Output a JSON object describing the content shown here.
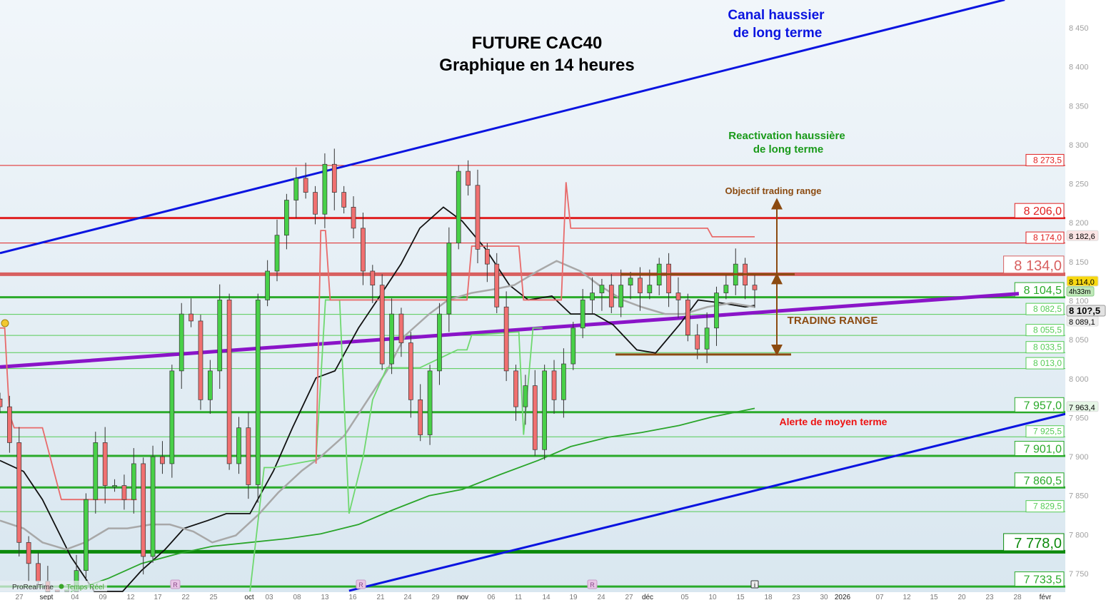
{
  "chart_data": {
    "type": "candlestick",
    "title": "FUTURE CAC40",
    "subtitle": "Graphique en 14 heures",
    "ylim": [
      7725,
      8490
    ],
    "y_ticks": [
      "8 450",
      "8 400",
      "8 350",
      "8 300",
      "8 250",
      "8 200",
      "8 150",
      "8 100",
      "8 050",
      "8 000",
      "7 950",
      "7 900",
      "7 850",
      "7 800",
      "7 750"
    ],
    "y_tick_values": [
      8450,
      8400,
      8350,
      8300,
      8250,
      8200,
      8150,
      8100,
      8050,
      8000,
      7950,
      7900,
      7850,
      7800,
      7750
    ],
    "x_ticks": [
      {
        "label": "27",
        "m": false
      },
      {
        "label": "sept",
        "m": true
      },
      {
        "label": "04",
        "m": false
      },
      {
        "label": "09",
        "m": false
      },
      {
        "label": "12",
        "m": false
      },
      {
        "label": "17",
        "m": false
      },
      {
        "label": "22",
        "m": false
      },
      {
        "label": "25",
        "m": false
      },
      {
        "label": "oct",
        "m": true
      },
      {
        "label": "03",
        "m": false
      },
      {
        "label": "08",
        "m": false
      },
      {
        "label": "13",
        "m": false
      },
      {
        "label": "16",
        "m": false
      },
      {
        "label": "21",
        "m": false
      },
      {
        "label": "24",
        "m": false
      },
      {
        "label": "29",
        "m": false
      },
      {
        "label": "nov",
        "m": true
      },
      {
        "label": "06",
        "m": false
      },
      {
        "label": "11",
        "m": false
      },
      {
        "label": "14",
        "m": false
      },
      {
        "label": "19",
        "m": false
      },
      {
        "label": "24",
        "m": false
      },
      {
        "label": "27",
        "m": false
      },
      {
        "label": "déc",
        "m": true
      },
      {
        "label": "05",
        "m": false
      },
      {
        "label": "10",
        "m": false
      },
      {
        "label": "15",
        "m": false
      },
      {
        "label": "18",
        "m": false
      },
      {
        "label": "23",
        "m": false
      },
      {
        "label": "30",
        "m": false
      },
      {
        "label": "2026",
        "m": true
      },
      {
        "label": "07",
        "m": false
      },
      {
        "label": "12",
        "m": false
      },
      {
        "label": "15",
        "m": false
      },
      {
        "label": "20",
        "m": false
      },
      {
        "label": "23",
        "m": false
      },
      {
        "label": "28",
        "m": false
      },
      {
        "label": "févr",
        "m": true
      }
    ],
    "closes": [
      7964,
      7918,
      7790,
      7763,
      7740,
      7720,
      7700,
      7710,
      7754,
      7845,
      7918,
      7863,
      7863,
      7845,
      7891,
      7772,
      7900,
      7891,
      8010,
      8083,
      8074,
      7973,
      8010,
      8101,
      7891,
      7937,
      7864,
      8101,
      8138,
      8184,
      8229,
      8257,
      8239,
      8211,
      8275,
      8239,
      8220,
      8193,
      8138,
      8120,
      8019,
      8083,
      8046,
      7973,
      7928,
      8010,
      8083,
      8174,
      8266,
      8248,
      8166,
      8147,
      8092,
      8010,
      7964,
      7991,
      7909,
      8010,
      7973,
      8019,
      8065,
      8101,
      8110,
      8120,
      8092,
      8120,
      8129,
      8110,
      8120,
      8147,
      8110,
      8101,
      8056,
      8038,
      8065,
      8110,
      8120,
      8147,
      8120,
      8114
    ],
    "bar_count": 160,
    "series": [
      {
        "color": "#111111",
        "points": [
          [
            0,
            7895
          ],
          [
            5,
            7881
          ],
          [
            9,
            7845
          ],
          [
            15,
            7772
          ],
          [
            20,
            7717
          ],
          [
            26,
            7726
          ],
          [
            30,
            7754
          ],
          [
            35,
            7781
          ],
          [
            39,
            7808
          ],
          [
            44,
            7818
          ],
          [
            48,
            7827
          ],
          [
            53,
            7827
          ],
          [
            58,
            7882
          ],
          [
            62,
            7937
          ],
          [
            67,
            8001
          ],
          [
            71,
            8010
          ],
          [
            76,
            8065
          ],
          [
            80,
            8101
          ],
          [
            85,
            8147
          ],
          [
            89,
            8193
          ],
          [
            94,
            8220
          ],
          [
            98,
            8202
          ],
          [
            103,
            8166
          ],
          [
            108,
            8120
          ],
          [
            112,
            8101
          ],
          [
            117,
            8106
          ],
          [
            121,
            8083
          ],
          [
            126,
            8083
          ],
          [
            130,
            8069
          ],
          [
            135,
            8037
          ],
          [
            139,
            8033
          ],
          [
            144,
            8069
          ],
          [
            148,
            8101
          ],
          [
            153,
            8097
          ],
          [
            158,
            8092
          ],
          [
            160,
            8094
          ]
        ]
      },
      {
        "color": "#a8a8a8",
        "points": [
          [
            0,
            7818
          ],
          [
            5,
            7808
          ],
          [
            9,
            7790
          ],
          [
            14,
            7781
          ],
          [
            18,
            7790
          ],
          [
            23,
            7808
          ],
          [
            27,
            7808
          ],
          [
            32,
            7813
          ],
          [
            36,
            7813
          ],
          [
            41,
            7804
          ],
          [
            45,
            7790
          ],
          [
            50,
            7799
          ],
          [
            55,
            7827
          ],
          [
            59,
            7854
          ],
          [
            64,
            7882
          ],
          [
            68,
            7900
          ],
          [
            73,
            7927
          ],
          [
            77,
            7964
          ],
          [
            82,
            8010
          ],
          [
            86,
            8056
          ],
          [
            91,
            8083
          ],
          [
            95,
            8101
          ],
          [
            100,
            8110
          ],
          [
            105,
            8115
          ],
          [
            109,
            8120
          ],
          [
            114,
            8138
          ],
          [
            118,
            8151
          ],
          [
            123,
            8138
          ],
          [
            127,
            8120
          ],
          [
            132,
            8101
          ],
          [
            136,
            8092
          ],
          [
            141,
            8083
          ],
          [
            145,
            8083
          ],
          [
            150,
            8092
          ],
          [
            155,
            8097
          ],
          [
            160,
            8092
          ]
        ]
      },
      {
        "color": "#2aa52a",
        "points": [
          [
            15,
            7705
          ],
          [
            23,
            7744
          ],
          [
            30,
            7763
          ],
          [
            38,
            7776
          ],
          [
            45,
            7785
          ],
          [
            53,
            7790
          ],
          [
            61,
            7795
          ],
          [
            68,
            7801
          ],
          [
            76,
            7813
          ],
          [
            83,
            7831
          ],
          [
            91,
            7850
          ],
          [
            98,
            7858
          ],
          [
            106,
            7877
          ],
          [
            114,
            7895
          ],
          [
            121,
            7913
          ],
          [
            129,
            7925
          ],
          [
            136,
            7931
          ],
          [
            144,
            7940
          ],
          [
            151,
            7951
          ],
          [
            160,
            7962
          ]
        ]
      },
      {
        "color": "#6fd86f",
        "points": [
          [
            53,
            7726
          ],
          [
            56,
            7886
          ],
          [
            58,
            7886
          ],
          [
            67,
            7896
          ],
          [
            69,
            8101
          ],
          [
            72,
            8101
          ],
          [
            74,
            7827
          ],
          [
            77,
            7900
          ],
          [
            79,
            7973
          ],
          [
            82,
            8014
          ],
          [
            89,
            8014
          ],
          [
            97,
            8037
          ],
          [
            99,
            8037
          ],
          [
            100,
            8056
          ],
          [
            110,
            8060
          ],
          [
            111,
            7928
          ],
          [
            113,
            8065
          ],
          [
            115,
            8065
          ]
        ]
      },
      {
        "color": "#e86a6a",
        "points": [
          [
            0,
            8065
          ],
          [
            1,
            8065
          ],
          [
            2,
            7955
          ],
          [
            3,
            7937
          ],
          [
            9,
            7937
          ],
          [
            10,
            7914
          ],
          [
            13,
            7845
          ],
          [
            29,
            7845
          ]
        ]
      },
      {
        "color": "#e86a6a",
        "points": [
          [
            67,
            7891
          ],
          [
            68,
            8190
          ],
          [
            69,
            8190
          ],
          [
            70,
            8101
          ],
          [
            99,
            8101
          ],
          [
            100,
            8170
          ],
          [
            110,
            8170
          ],
          [
            111,
            8101
          ],
          [
            119,
            8101
          ],
          [
            120,
            8252
          ],
          [
            121,
            8193
          ],
          [
            150,
            8193
          ],
          [
            151,
            8182
          ],
          [
            160,
            8182
          ]
        ]
      }
    ],
    "trendlines": [
      {
        "name": "Canal haussier de long terme (haut)",
        "color": "#0a14e0",
        "from": [
          0,
          8161
        ],
        "to": [
          213,
          8486
        ]
      },
      {
        "name": "Canal haussier (bas)",
        "color": "#0a14e0",
        "from": [
          74,
          7728
        ],
        "to": [
          226,
          7955
        ]
      },
      {
        "color": "#8a14c8",
        "from": [
          0,
          8015
        ],
        "to": [
          216,
          8109
        ]
      }
    ],
    "levels": [
      {
        "value": 8273.5,
        "label": "8 273,5",
        "color": "#e02020",
        "size": "s",
        "weight": 1
      },
      {
        "value": 8206.0,
        "label": "8 206,0",
        "color": "#e02020",
        "size": "m",
        "weight": 3
      },
      {
        "value": 8174.0,
        "label": "8 174,0",
        "color": "#e02020",
        "size": "s",
        "weight": 1
      },
      {
        "value": 8134.0,
        "label": "8 134,0",
        "color": "#d86060",
        "size": "l",
        "weight": 5
      },
      {
        "value": 8104.5,
        "label": "8 104,5",
        "color": "#2aaa2a",
        "size": "m",
        "weight": 3
      },
      {
        "value": 8082.5,
        "label": "8 082,5",
        "color": "#55cc55",
        "size": "s",
        "weight": 1
      },
      {
        "value": 8055.5,
        "label": "8 055,5",
        "color": "#55cc55",
        "size": "s",
        "weight": 1
      },
      {
        "value": 8033.5,
        "label": "8 033,5",
        "color": "#55cc55",
        "size": "s",
        "weight": 1
      },
      {
        "value": 8013.0,
        "label": "8 013,0",
        "color": "#55cc55",
        "size": "s",
        "weight": 1
      },
      {
        "value": 7957.0,
        "label": "7 957,0",
        "color": "#2aaa2a",
        "size": "m",
        "weight": 3
      },
      {
        "value": 7925.5,
        "label": "7 925,5",
        "color": "#55cc55",
        "size": "s",
        "weight": 1
      },
      {
        "value": 7901.0,
        "label": "7 901,0",
        "color": "#2aaa2a",
        "size": "m",
        "weight": 3
      },
      {
        "value": 7860.5,
        "label": "7 860,5",
        "color": "#2aaa2a",
        "size": "m",
        "weight": 3
      },
      {
        "value": 7829.5,
        "label": "7 829,5",
        "color": "#55cc55",
        "size": "s",
        "weight": 1
      },
      {
        "value": 7778.0,
        "label": "7 778,0",
        "color": "#0c8a0c",
        "size": "l",
        "weight": 5
      },
      {
        "value": 7733.5,
        "label": "7 733,5",
        "color": "#2aaa2a",
        "size": "m",
        "weight": 3
      }
    ],
    "trading_range": {
      "top": 8134,
      "bottom": 8031,
      "target": 8230,
      "color": "#8b4a10"
    },
    "price_tags": [
      {
        "value": 8182.6,
        "label": "8 182,6",
        "bg": "#fbe4e4",
        "fg": "#000"
      },
      {
        "value": 8114.0,
        "label": "8 114,0",
        "bg": "#f8d810",
        "fg": "#000"
      },
      {
        "value": 8089.1,
        "label": "8 089,1",
        "bg": "#eeeeee",
        "fg": "#000"
      },
      {
        "value": 7963.4,
        "label": "7 963,4",
        "bg": "#e6f6e6",
        "fg": "#000"
      }
    ],
    "current_price": "8 10?,5",
    "countdown": "4h33m",
    "annotations": {
      "canal_1": "Canal haussier",
      "canal_2": "de long terme",
      "reactivation_1": "Reactivation haussière",
      "reactivation_2": "de long terme",
      "objectif": "Objectif trading range",
      "trading_range": "TRADING RANGE",
      "alerte": "Alerte de moyen terme"
    }
  },
  "footer": {
    "brand": "ProRealTime",
    "status": "Temps Réel"
  },
  "markers": {
    "r": "R",
    "i": "i"
  }
}
